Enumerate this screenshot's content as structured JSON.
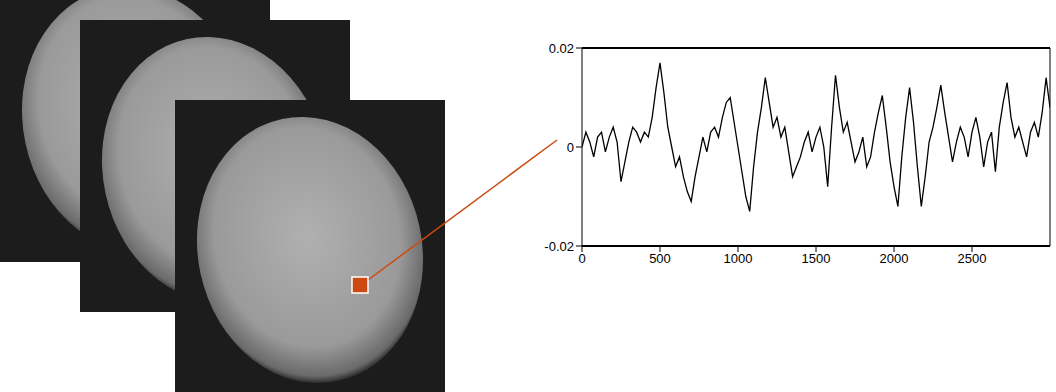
{
  "chart_data": {
    "type": "line",
    "x": [
      0,
      25,
      50,
      75,
      100,
      125,
      150,
      175,
      200,
      225,
      250,
      275,
      300,
      325,
      350,
      375,
      400,
      425,
      450,
      475,
      500,
      525,
      550,
      575,
      600,
      625,
      650,
      675,
      700,
      725,
      750,
      775,
      800,
      825,
      850,
      875,
      900,
      925,
      950,
      975,
      1000,
      1025,
      1050,
      1075,
      1100,
      1125,
      1150,
      1175,
      1200,
      1225,
      1250,
      1275,
      1300,
      1325,
      1350,
      1375,
      1400,
      1425,
      1450,
      1475,
      1500,
      1525,
      1550,
      1575,
      1600,
      1625,
      1650,
      1675,
      1700,
      1725,
      1750,
      1775,
      1800,
      1825,
      1850,
      1875,
      1900,
      1925,
      1950,
      1975,
      2000,
      2025,
      2050,
      2075,
      2100,
      2125,
      2150,
      2175,
      2200,
      2225,
      2250,
      2275,
      2300,
      2325,
      2350,
      2375,
      2400,
      2425,
      2450,
      2475,
      2500,
      2525,
      2550,
      2575,
      2600,
      2625,
      2650,
      2675,
      2700,
      2725,
      2750,
      2775,
      2800,
      2825,
      2850,
      2875,
      2900,
      2925,
      2950,
      2975,
      3000
    ],
    "values": [
      0.0,
      0.003,
      0.001,
      -0.002,
      0.002,
      0.003,
      -0.001,
      0.002,
      0.004,
      0.001,
      -0.007,
      -0.003,
      0.001,
      0.004,
      0.003,
      0.001,
      0.003,
      0.002,
      0.006,
      0.012,
      0.017,
      0.011,
      0.004,
      0.0,
      -0.004,
      -0.002,
      -0.006,
      -0.009,
      -0.011,
      -0.006,
      -0.002,
      0.002,
      -0.001,
      0.003,
      0.004,
      0.002,
      0.006,
      0.009,
      0.01,
      0.005,
      0.0,
      -0.005,
      -0.01,
      -0.013,
      -0.004,
      0.003,
      0.008,
      0.014,
      0.009,
      0.004,
      0.006,
      0.002,
      0.004,
      -0.001,
      -0.006,
      -0.004,
      -0.002,
      0.001,
      0.003,
      -0.001,
      0.002,
      0.004,
      0.0,
      -0.008,
      0.004,
      0.0145,
      0.008,
      0.003,
      0.005,
      0.001,
      -0.003,
      -0.001,
      0.002,
      -0.004,
      -0.002,
      0.003,
      0.007,
      0.0104,
      0.004,
      -0.003,
      -0.008,
      -0.012,
      -0.002,
      0.006,
      0.012,
      0.005,
      -0.004,
      -0.012,
      -0.006,
      0.001,
      0.004,
      0.008,
      0.0125,
      0.007,
      0.002,
      -0.003,
      0.001,
      0.004,
      0.002,
      -0.002,
      0.003,
      0.006,
      0.002,
      -0.004,
      0.001,
      0.003,
      -0.005,
      0.004,
      0.009,
      0.013,
      0.006,
      0.002,
      0.004,
      0.001,
      -0.002,
      0.003,
      0.005,
      0.002,
      0.007,
      0.014,
      0.008
    ],
    "color": "#000000",
    "xlim": [
      0,
      3000
    ],
    "xticks": [
      0,
      500,
      1000,
      1500,
      2000,
      2500
    ],
    "ylim": [
      -0.02,
      0.02
    ],
    "yticks": [
      -0.02,
      0,
      0.02
    ],
    "grid": false
  }
}
